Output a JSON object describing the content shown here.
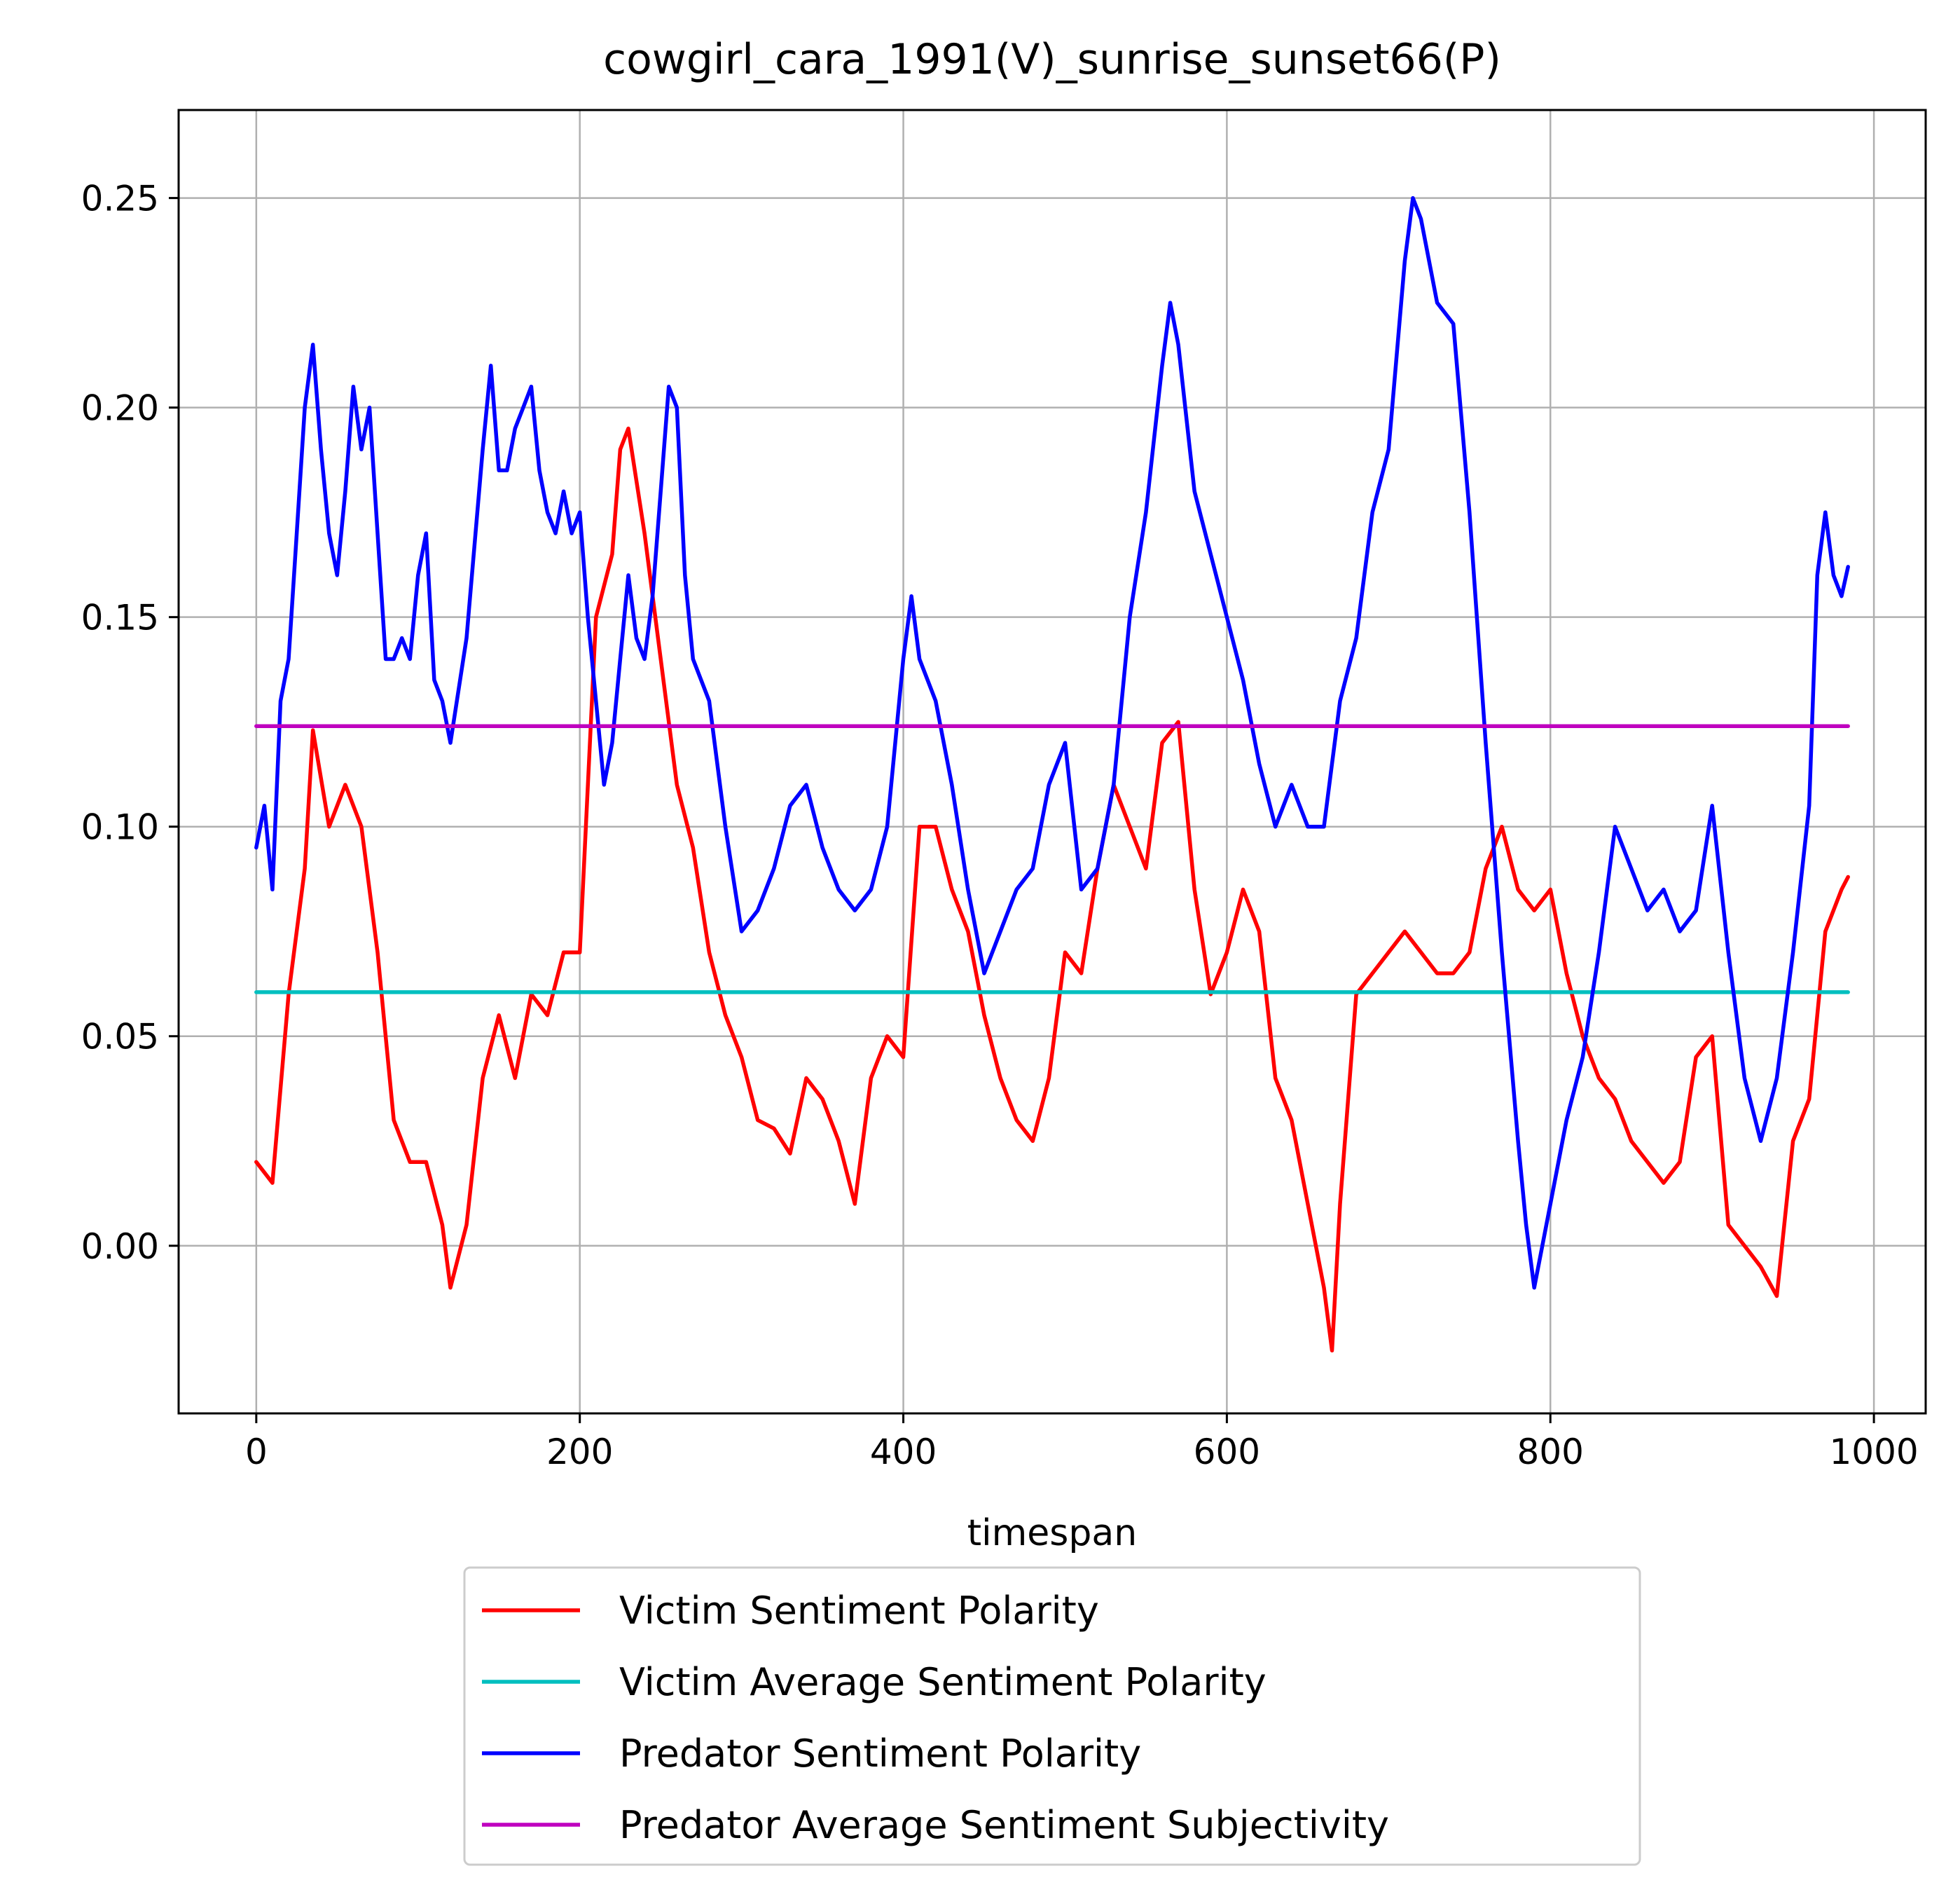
{
  "chart_data": {
    "type": "line",
    "title": "cowgirl_cara_1991(V)_sunrise_sunset66(P)",
    "xlabel": "timespan",
    "ylabel": "",
    "xlim": [
      -48,
      1032
    ],
    "ylim": [
      -0.04,
      0.271
    ],
    "xticks": [
      0,
      200,
      400,
      600,
      800,
      1000
    ],
    "xtick_labels": [
      "0",
      "200",
      "400",
      "600",
      "800",
      "1000"
    ],
    "yticks": [
      0.0,
      0.05,
      0.1,
      0.15,
      0.2,
      0.25
    ],
    "ytick_labels": [
      "0.00",
      "0.05",
      "0.10",
      "0.15",
      "0.20",
      "0.25"
    ],
    "grid": true,
    "legend_position": "below plot, centered",
    "series": [
      {
        "name": "Victim Sentiment Polarity",
        "color": "#ff0000",
        "x": [
          0,
          10,
          20,
          30,
          35,
          45,
          55,
          65,
          75,
          85,
          95,
          105,
          115,
          120,
          130,
          140,
          150,
          160,
          170,
          180,
          190,
          200,
          210,
          220,
          225,
          230,
          240,
          250,
          260,
          270,
          280,
          290,
          300,
          310,
          320,
          330,
          340,
          350,
          360,
          370,
          380,
          390,
          400,
          410,
          420,
          430,
          440,
          450,
          460,
          470,
          480,
          490,
          500,
          510,
          520,
          530,
          540,
          550,
          560,
          570,
          580,
          590,
          600,
          610,
          620,
          630,
          640,
          650,
          660,
          665,
          670,
          680,
          690,
          700,
          710,
          720,
          730,
          740,
          750,
          760,
          770,
          780,
          790,
          800,
          810,
          820,
          830,
          840,
          850,
          860,
          870,
          880,
          890,
          900,
          910,
          920,
          930,
          940,
          950,
          960,
          970,
          980,
          984
        ],
        "y": [
          0.02,
          0.015,
          0.06,
          0.09,
          0.123,
          0.1,
          0.11,
          0.1,
          0.07,
          0.03,
          0.02,
          0.02,
          0.005,
          -0.01,
          0.005,
          0.04,
          0.055,
          0.04,
          0.06,
          0.055,
          0.07,
          0.07,
          0.15,
          0.165,
          0.19,
          0.195,
          0.17,
          0.14,
          0.11,
          0.095,
          0.07,
          0.055,
          0.045,
          0.03,
          0.028,
          0.022,
          0.04,
          0.035,
          0.025,
          0.01,
          0.04,
          0.05,
          0.045,
          0.1,
          0.1,
          0.085,
          0.075,
          0.055,
          0.04,
          0.03,
          0.025,
          0.04,
          0.07,
          0.065,
          0.09,
          0.11,
          0.1,
          0.09,
          0.12,
          0.125,
          0.085,
          0.06,
          0.07,
          0.085,
          0.075,
          0.04,
          0.03,
          0.01,
          -0.01,
          -0.025,
          0.01,
          0.06,
          0.065,
          0.07,
          0.075,
          0.07,
          0.065,
          0.065,
          0.07,
          0.09,
          0.1,
          0.085,
          0.08,
          0.085,
          0.065,
          0.05,
          0.04,
          0.035,
          0.025,
          0.02,
          0.015,
          0.02,
          0.045,
          0.05,
          0.005,
          0.0,
          -0.005,
          -0.012,
          0.025,
          0.035,
          0.075,
          0.085,
          0.088
        ]
      },
      {
        "name": "Victim Average Sentiment Polarity",
        "color": "#00bfbf",
        "x": [
          0,
          984
        ],
        "y": [
          0.0605,
          0.0605
        ]
      },
      {
        "name": "Predator Sentiment Polarity",
        "color": "#0000ff",
        "x": [
          0,
          5,
          10,
          15,
          20,
          25,
          30,
          35,
          40,
          45,
          50,
          55,
          60,
          65,
          70,
          75,
          80,
          85,
          90,
          95,
          100,
          105,
          110,
          115,
          120,
          130,
          140,
          145,
          150,
          155,
          160,
          165,
          170,
          175,
          180,
          185,
          190,
          195,
          200,
          205,
          210,
          215,
          220,
          225,
          230,
          235,
          240,
          245,
          250,
          255,
          260,
          265,
          270,
          280,
          290,
          300,
          310,
          320,
          330,
          340,
          350,
          360,
          370,
          380,
          390,
          400,
          405,
          410,
          420,
          430,
          440,
          450,
          460,
          470,
          480,
          490,
          500,
          510,
          520,
          530,
          540,
          550,
          560,
          565,
          570,
          580,
          590,
          600,
          610,
          620,
          630,
          640,
          650,
          660,
          670,
          680,
          690,
          700,
          710,
          715,
          720,
          730,
          740,
          750,
          760,
          770,
          780,
          785,
          790,
          800,
          810,
          820,
          830,
          840,
          850,
          860,
          870,
          880,
          890,
          900,
          910,
          920,
          930,
          940,
          950,
          960,
          965,
          970,
          975,
          980,
          984
        ],
        "y": [
          0.095,
          0.105,
          0.085,
          0.13,
          0.14,
          0.17,
          0.2,
          0.215,
          0.19,
          0.17,
          0.16,
          0.18,
          0.205,
          0.19,
          0.2,
          0.17,
          0.14,
          0.14,
          0.145,
          0.14,
          0.16,
          0.17,
          0.135,
          0.13,
          0.12,
          0.145,
          0.19,
          0.21,
          0.185,
          0.185,
          0.195,
          0.2,
          0.205,
          0.185,
          0.175,
          0.17,
          0.18,
          0.17,
          0.175,
          0.15,
          0.13,
          0.11,
          0.12,
          0.14,
          0.16,
          0.145,
          0.14,
          0.155,
          0.18,
          0.205,
          0.2,
          0.16,
          0.14,
          0.13,
          0.1,
          0.075,
          0.08,
          0.09,
          0.105,
          0.11,
          0.095,
          0.085,
          0.08,
          0.085,
          0.1,
          0.14,
          0.155,
          0.14,
          0.13,
          0.11,
          0.085,
          0.065,
          0.075,
          0.085,
          0.09,
          0.11,
          0.12,
          0.085,
          0.09,
          0.11,
          0.15,
          0.175,
          0.21,
          0.225,
          0.215,
          0.18,
          0.165,
          0.15,
          0.135,
          0.115,
          0.1,
          0.11,
          0.1,
          0.1,
          0.13,
          0.145,
          0.175,
          0.19,
          0.235,
          0.25,
          0.245,
          0.225,
          0.22,
          0.175,
          0.12,
          0.07,
          0.025,
          0.005,
          -0.01,
          0.01,
          0.03,
          0.045,
          0.07,
          0.1,
          0.09,
          0.08,
          0.085,
          0.075,
          0.08,
          0.105,
          0.07,
          0.04,
          0.025,
          0.04,
          0.07,
          0.105,
          0.16,
          0.175,
          0.16,
          0.155,
          0.162
        ]
      },
      {
        "name": "Predator Average Sentiment Subjectivity",
        "color": "#bf00bf",
        "x": [
          0,
          984
        ],
        "y": [
          0.124,
          0.124
        ]
      }
    ]
  }
}
